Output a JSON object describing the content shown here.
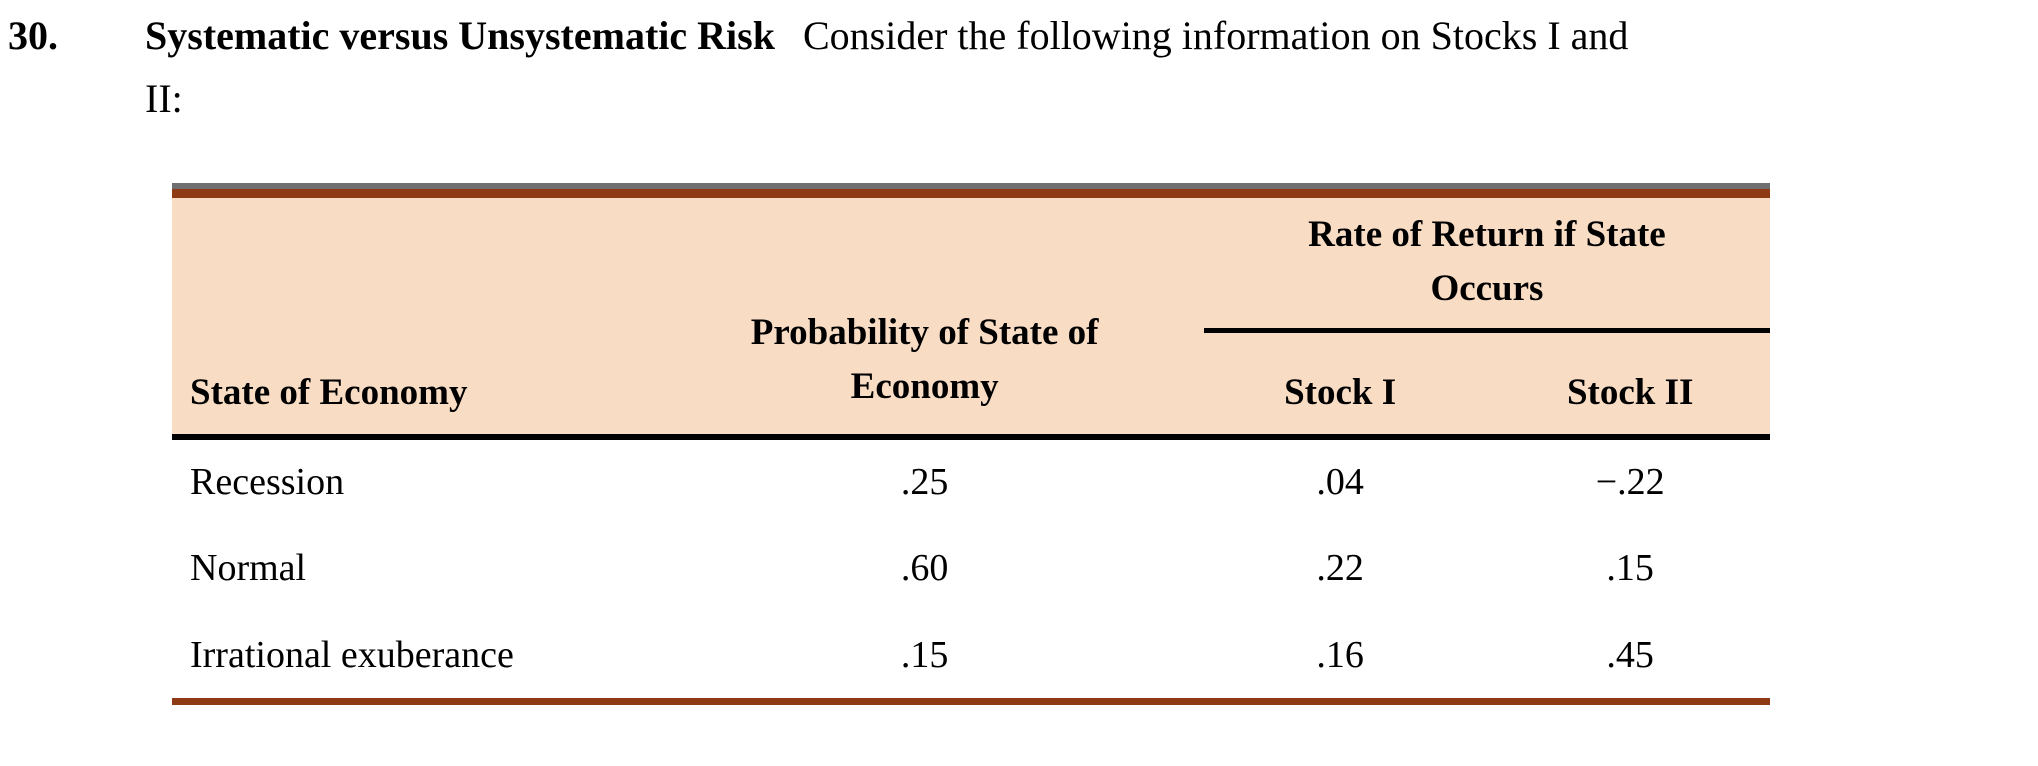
{
  "problem": {
    "number": "30.",
    "title": "Systematic versus Unsystematic Risk",
    "intro_line1": "Consider the following information on Stocks I and",
    "intro_line2": "II:"
  },
  "table": {
    "spanner_line1": "Rate of Return if State",
    "spanner_line2": "Occurs",
    "col_state": "State of Economy",
    "col_probability_line1": "Probability of State of",
    "col_probability_line2": "Economy",
    "col_stock1": "Stock I",
    "col_stock2": "Stock II",
    "rows": [
      {
        "state": "Recession",
        "probability": ".25",
        "stock1": ".04",
        "stock2": "−.22"
      },
      {
        "state": "Normal",
        "probability": ".60",
        "stock1": ".22",
        "stock2": ".15"
      },
      {
        "state": "Irrational exuberance",
        "probability": ".15",
        "stock1": ".16",
        "stock2": ".45"
      }
    ],
    "colors": {
      "header_bg": "#f8dcc4",
      "rule_red": "#8e3a15",
      "rule_gray": "#6f6f72"
    }
  }
}
